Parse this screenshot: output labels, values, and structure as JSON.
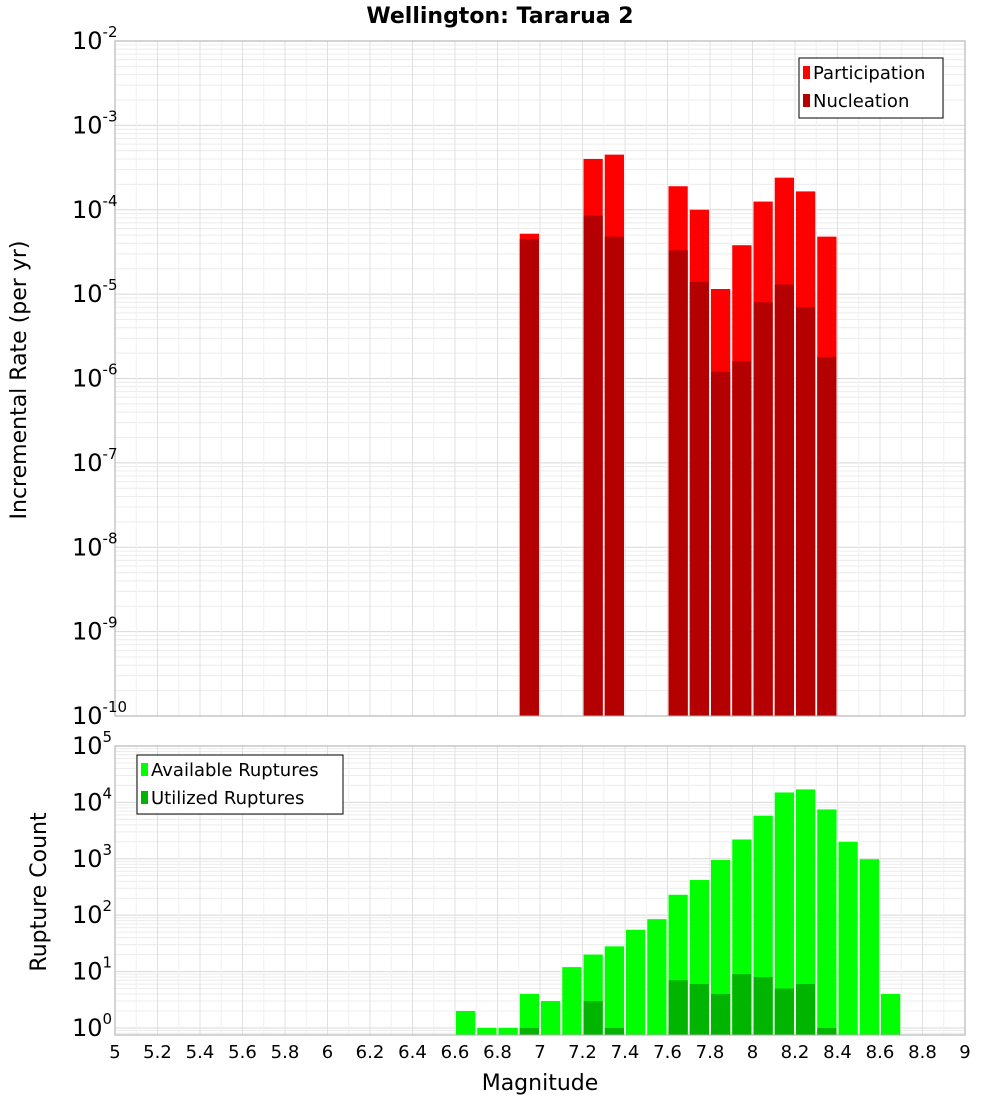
{
  "chart_data": [
    {
      "type": "bar",
      "title": "Wellington: Tararua 2",
      "xlabel": "",
      "ylabel": "Incremental Rate (per yr)",
      "yscale": "log",
      "xlim": [
        5,
        9
      ],
      "ylim": [
        1e-10,
        0.01
      ],
      "ytick_exponents": [
        -10,
        -9,
        -8,
        -7,
        -6,
        -5,
        -4,
        -3,
        -2
      ],
      "grid": true,
      "bin_width": 0.1,
      "legend_position": "top-right",
      "colors": {
        "Participation": "#ff0000",
        "Nucleation": "#b40000"
      },
      "series": [
        {
          "name": "Participation",
          "x": [
            6.95,
            7.25,
            7.35,
            7.65,
            7.75,
            7.85,
            7.95,
            8.05,
            8.15,
            8.25,
            8.35
          ],
          "values": [
            5.2e-05,
            0.0004,
            0.00045,
            0.00019,
            0.0001,
            1.15e-05,
            3.8e-05,
            0.000125,
            0.00024,
            0.000165,
            4.8e-05
          ]
        },
        {
          "name": "Nucleation",
          "x": [
            6.95,
            7.25,
            7.35,
            7.65,
            7.75,
            7.85,
            7.95,
            8.05,
            8.15,
            8.25,
            8.35
          ],
          "values": [
            4.5e-05,
            8.5e-05,
            4.8e-05,
            3.3e-05,
            1.4e-05,
            1.2e-06,
            1.6e-06,
            8e-06,
            1.3e-05,
            7e-06,
            1.8e-06
          ]
        }
      ]
    },
    {
      "type": "bar",
      "title": "",
      "xlabel": "Magnitude",
      "ylabel": "Rupture Count",
      "yscale": "log",
      "xlim": [
        5,
        9
      ],
      "ylim": [
        0.75,
        100000.0
      ],
      "ytick_exponents": [
        0,
        1,
        2,
        3,
        4,
        5
      ],
      "xticks": [
        "5",
        "5.2",
        "5.4",
        "5.6",
        "5.8",
        "6",
        "6.2",
        "6.4",
        "6.6",
        "6.8",
        "7",
        "7.2",
        "7.4",
        "7.6",
        "7.8",
        "8",
        "8.2",
        "8.4",
        "8.6",
        "8.8",
        "9"
      ],
      "grid": true,
      "bin_width": 0.1,
      "legend_position": "top-left",
      "colors": {
        "Available Ruptures": "#00ff00",
        "Utilized Ruptures": "#00b400"
      },
      "series": [
        {
          "name": "Available Ruptures",
          "x": [
            6.65,
            6.75,
            6.85,
            6.95,
            7.05,
            7.15,
            7.25,
            7.35,
            7.45,
            7.55,
            7.65,
            7.75,
            7.85,
            7.95,
            8.05,
            8.15,
            8.25,
            8.35,
            8.45,
            8.55,
            8.65
          ],
          "values": [
            2,
            1,
            1,
            4,
            3,
            12,
            20,
            28,
            55,
            85,
            230,
            420,
            950,
            2200,
            5800,
            15000,
            17000,
            7500,
            2000,
            980,
            4
          ]
        },
        {
          "name": "Utilized Ruptures",
          "x": [
            6.95,
            7.25,
            7.35,
            7.65,
            7.75,
            7.85,
            7.95,
            8.05,
            8.15,
            8.25,
            8.35
          ],
          "values": [
            1,
            3,
            1,
            7,
            6,
            4,
            9,
            8,
            5,
            6,
            1
          ]
        }
      ]
    }
  ]
}
